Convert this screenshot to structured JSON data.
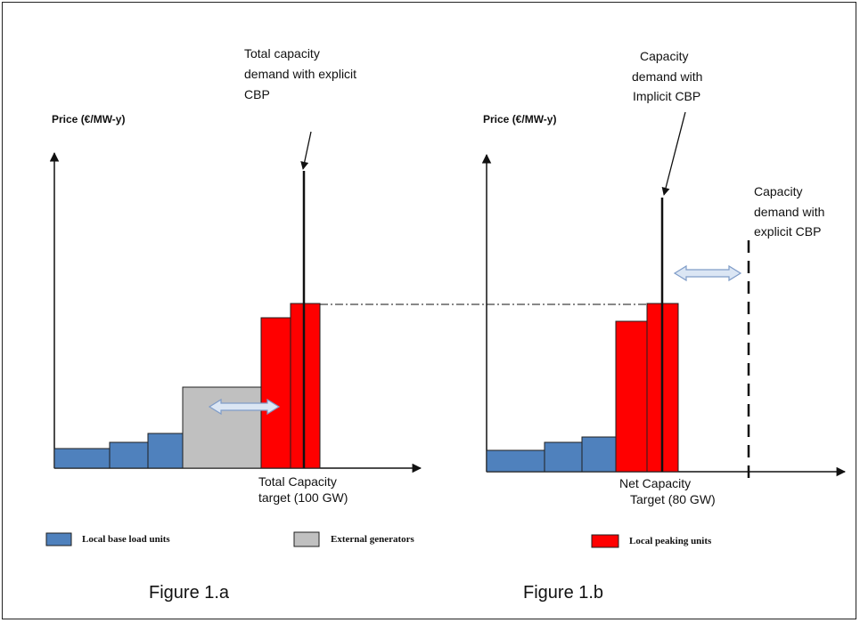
{
  "figure_a": {
    "axis_label": "Price (€/MW-y)",
    "annotation_lines": [
      "Total capacity",
      "demand with  explicit",
      "CBP"
    ],
    "target_lines": [
      "Total  Capacity",
      "target  (100 GW)"
    ],
    "caption": "Figure 1.a"
  },
  "figure_b": {
    "axis_label": "Price (€/MW-y)",
    "annotation_lines": [
      "Capacity",
      "demand with",
      "Implicit  CBP"
    ],
    "explicit_lines": [
      "Capacity",
      "demand with",
      "explicit CBP"
    ],
    "target_lines": [
      "Net Capacity",
      "Target  (80 GW)"
    ],
    "caption": "Figure 1.b"
  },
  "legend": [
    {
      "label": "Local base load units",
      "color": "#4f81bd"
    },
    {
      "label": "External generators",
      "color": "#c0c0c0"
    },
    {
      "label": "Local peaking units",
      "color": "#ff0000"
    }
  ],
  "colors": {
    "base": "#4f81bd",
    "external": "#c0c0c0",
    "peaking": "#ff0000",
    "arrow_fill": "#dbe6f4",
    "arrow_stroke": "#7f9cc8"
  }
}
